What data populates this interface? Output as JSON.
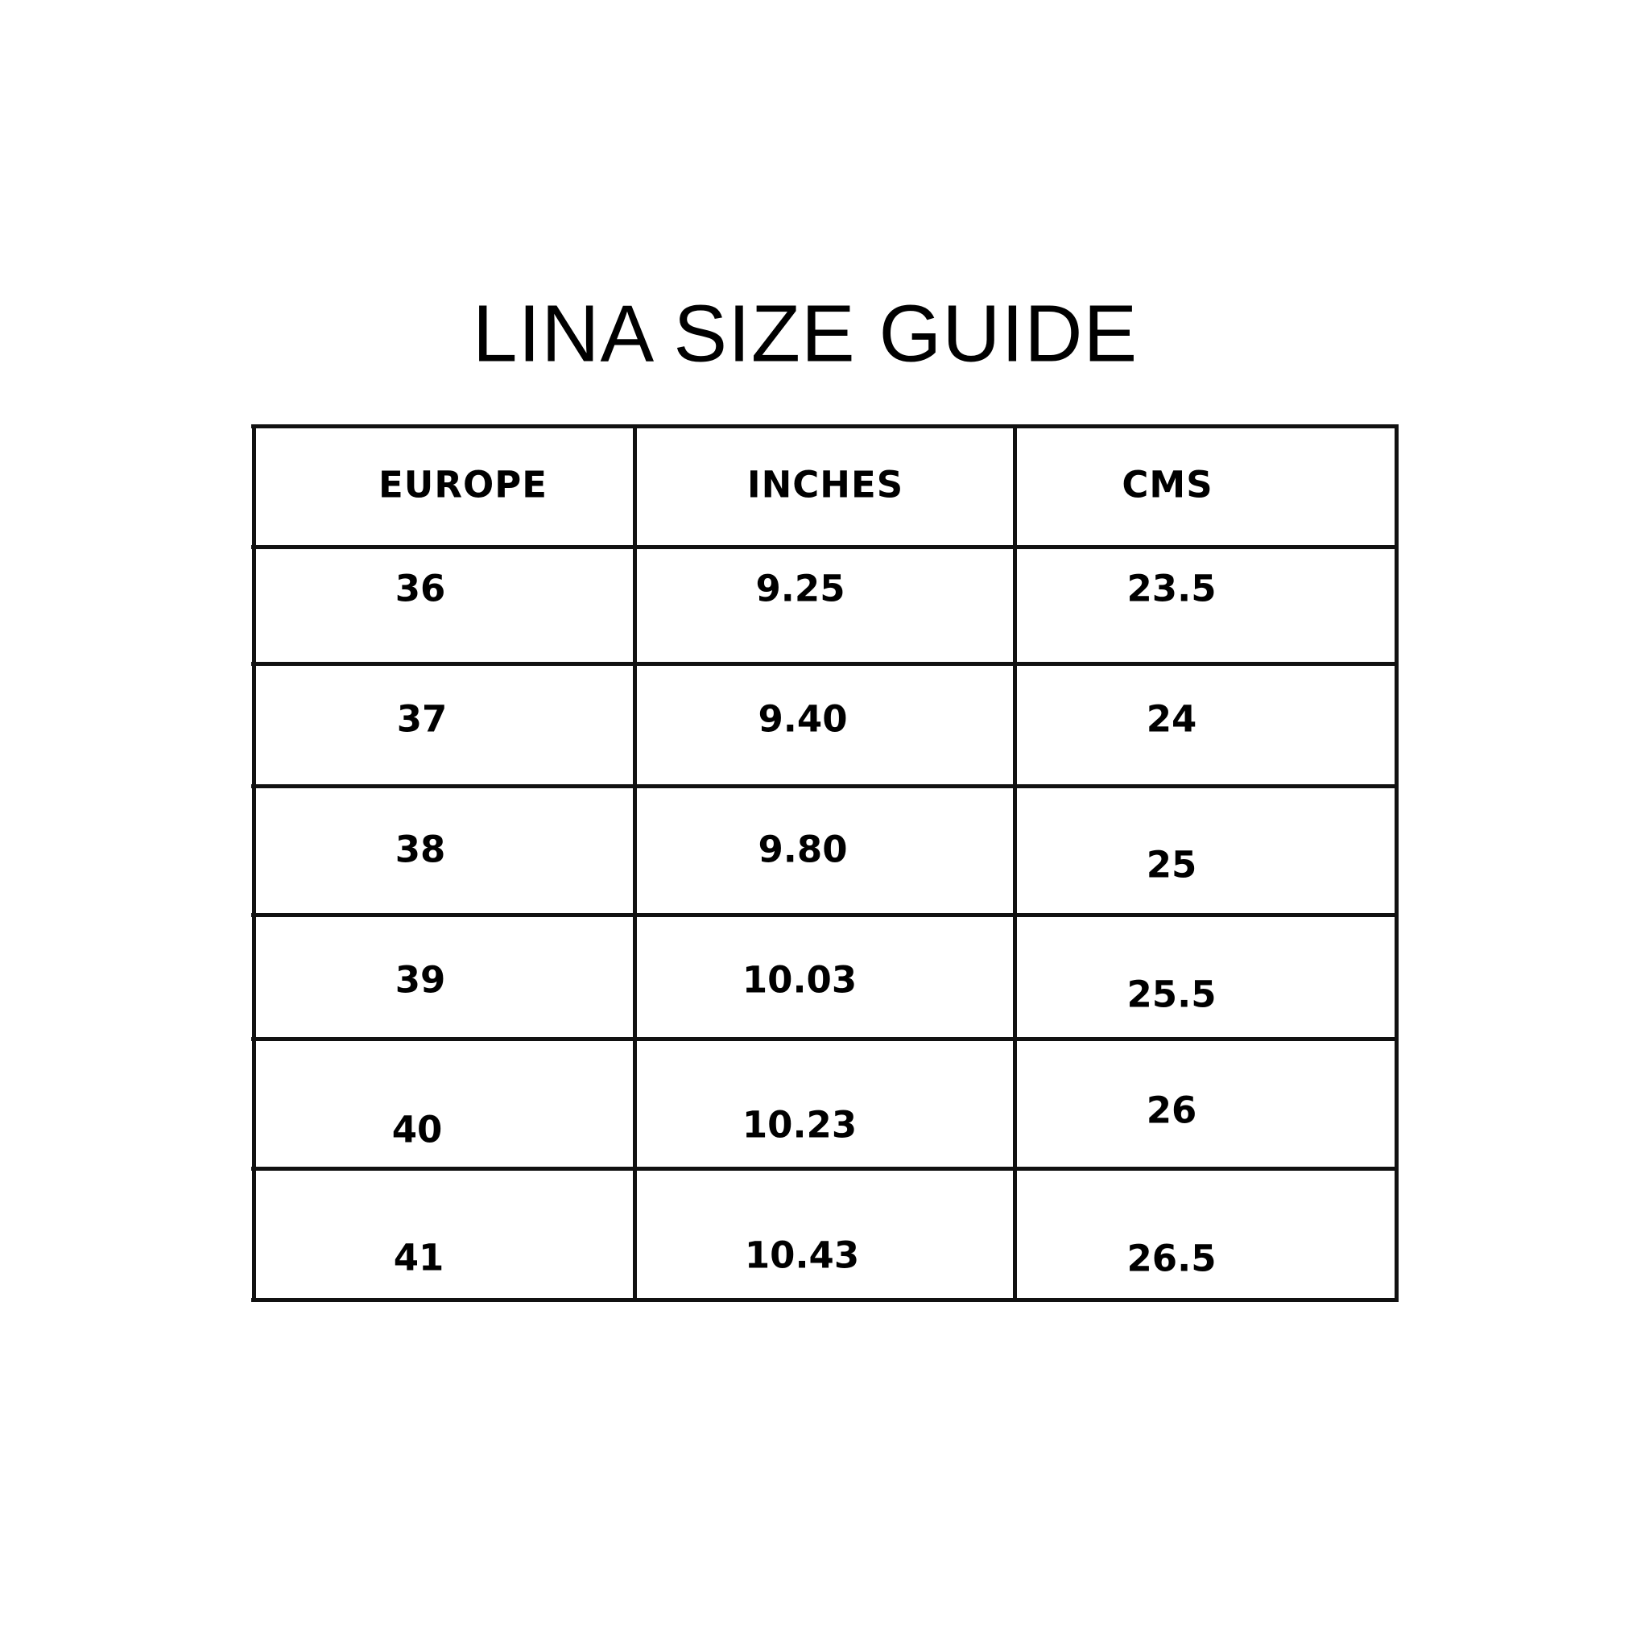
{
  "title": "LINA SIZE GUIDE",
  "table": {
    "headers": [
      "EUROPE",
      "INCHES",
      "CMS"
    ],
    "rows": [
      [
        "36",
        "9.25",
        "23.5"
      ],
      [
        "37",
        "9.40",
        "24"
      ],
      [
        "38",
        "9.80",
        "25"
      ],
      [
        "39",
        "10.03",
        "25.5"
      ],
      [
        "40",
        "10.23",
        "26"
      ],
      [
        "41",
        "10.43",
        "26.5"
      ]
    ]
  },
  "colors": {
    "text": "#000000",
    "border": "#111111",
    "background": "#ffffff"
  }
}
